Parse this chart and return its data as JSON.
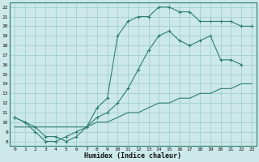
{
  "xlabel": "Humidex (Indice chaleur)",
  "bg_color": "#cce8e8",
  "grid_color": "#99cccc",
  "line_color": "#2e7d72",
  "xlim": [
    -0.5,
    23.5
  ],
  "ylim": [
    7.5,
    22.5
  ],
  "xticks": [
    0,
    1,
    2,
    3,
    4,
    5,
    6,
    7,
    8,
    9,
    10,
    11,
    12,
    13,
    14,
    15,
    16,
    17,
    18,
    19,
    20,
    21,
    22,
    23
  ],
  "yticks": [
    8,
    9,
    10,
    11,
    12,
    13,
    14,
    15,
    16,
    17,
    18,
    19,
    20,
    21,
    22
  ],
  "line1_x": [
    0,
    1,
    2,
    3,
    4,
    5,
    6,
    7,
    8,
    9,
    10,
    11,
    12,
    13,
    14,
    15,
    16,
    17,
    18,
    19,
    20,
    21,
    22,
    23
  ],
  "line1_y": [
    10.5,
    10.0,
    9.0,
    8.0,
    8.0,
    8.5,
    9.0,
    9.5,
    11.5,
    12.5,
    19.0,
    20.5,
    21.0,
    21.0,
    22.0,
    22.0,
    21.5,
    21.5,
    20.5,
    20.5,
    20.5,
    20.5,
    20.0,
    20.0
  ],
  "line2_x": [
    0,
    1,
    2,
    3,
    4,
    5,
    6,
    7,
    8,
    9,
    10,
    11,
    12,
    13,
    14,
    15,
    16,
    17,
    18,
    19,
    20,
    21,
    22,
    23
  ],
  "line2_y": [
    10.5,
    10.0,
    9.5,
    8.5,
    8.5,
    8.0,
    8.5,
    9.5,
    10.5,
    11.0,
    12.0,
    13.5,
    15.5,
    17.5,
    19.0,
    19.5,
    18.5,
    18.0,
    18.5,
    19.0,
    16.5,
    16.5,
    16.0
  ],
  "line3_x": [
    0,
    1,
    2,
    3,
    4,
    5,
    6,
    7,
    8,
    9,
    10,
    11,
    12,
    13,
    14,
    15,
    16,
    17,
    18,
    19,
    20,
    21,
    22,
    23
  ],
  "line3_y": [
    9.5,
    9.5,
    9.5,
    9.5,
    9.5,
    9.5,
    9.5,
    9.5,
    10.0,
    10.0,
    10.5,
    11.0,
    11.0,
    11.5,
    12.0,
    12.0,
    12.5,
    12.5,
    13.0,
    13.0,
    13.5,
    13.5,
    14.0,
    14.0
  ],
  "line2_last_x": 22
}
